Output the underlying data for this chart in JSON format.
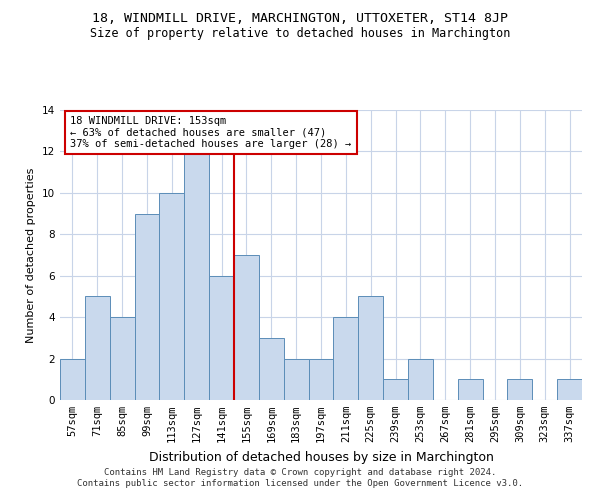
{
  "title1": "18, WINDMILL DRIVE, MARCHINGTON, UTTOXETER, ST14 8JP",
  "title2": "Size of property relative to detached houses in Marchington",
  "xlabel": "Distribution of detached houses by size in Marchington",
  "ylabel": "Number of detached properties",
  "footer1": "Contains HM Land Registry data © Crown copyright and database right 2024.",
  "footer2": "Contains public sector information licensed under the Open Government Licence v3.0.",
  "annotation_line1": "18 WINDMILL DRIVE: 153sqm",
  "annotation_line2": "← 63% of detached houses are smaller (47)",
  "annotation_line3": "37% of semi-detached houses are larger (28) →",
  "bin_labels": [
    "57sqm",
    "71sqm",
    "85sqm",
    "99sqm",
    "113sqm",
    "127sqm",
    "141sqm",
    "155sqm",
    "169sqm",
    "183sqm",
    "197sqm",
    "211sqm",
    "225sqm",
    "239sqm",
    "253sqm",
    "267sqm",
    "281sqm",
    "295sqm",
    "309sqm",
    "323sqm",
    "337sqm"
  ],
  "bar_heights": [
    2,
    5,
    4,
    9,
    10,
    12,
    6,
    7,
    3,
    2,
    2,
    4,
    5,
    1,
    2,
    0,
    1,
    0,
    1,
    0,
    1
  ],
  "bar_color": "#c9d9ed",
  "bar_edge_color": "#5b8db8",
  "vline_x_idx": 7,
  "vline_color": "#cc0000",
  "annotation_box_color": "#cc0000",
  "ylim": [
    0,
    14
  ],
  "yticks": [
    0,
    2,
    4,
    6,
    8,
    10,
    12,
    14
  ],
  "background_color": "#ffffff",
  "grid_color": "#c8d4e8",
  "title1_fontsize": 9.5,
  "title2_fontsize": 8.5,
  "xlabel_fontsize": 9,
  "ylabel_fontsize": 8,
  "tick_fontsize": 7.5,
  "annotation_fontsize": 7.5,
  "footer_fontsize": 6.5
}
